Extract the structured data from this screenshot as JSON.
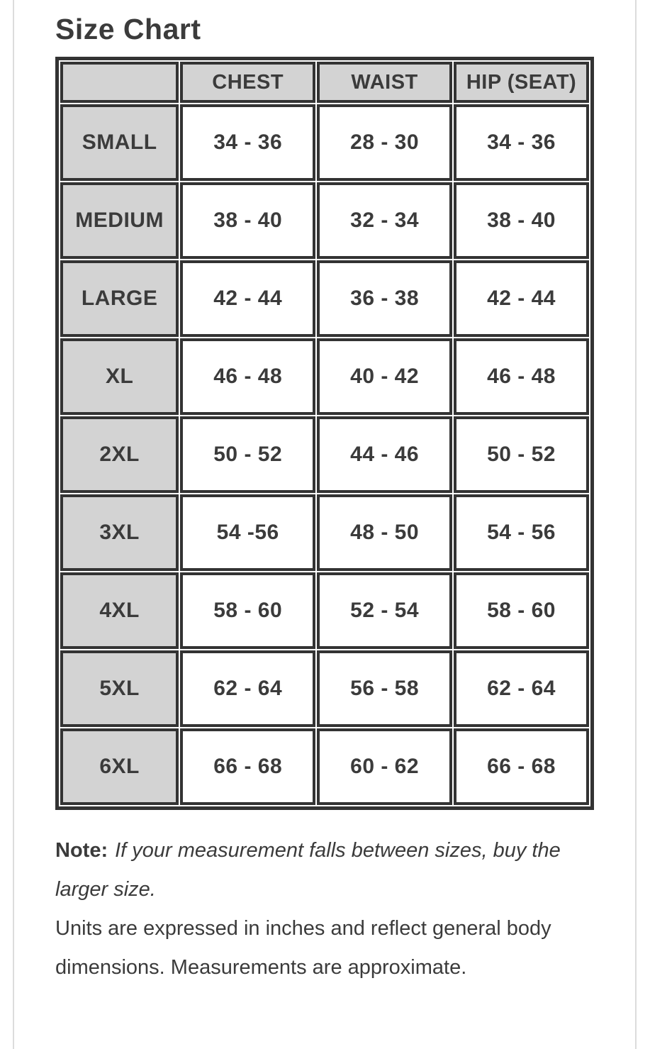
{
  "page": {
    "title": "Size Chart"
  },
  "size_table": {
    "columns": [
      "",
      "CHEST",
      "WAIST",
      "HIP (SEAT)"
    ],
    "rows": [
      {
        "size": "SMALL",
        "chest": "34 - 36",
        "waist": "28 - 30",
        "hip": "34 - 36"
      },
      {
        "size": "MEDIUM",
        "chest": "38 - 40",
        "waist": "32 - 34",
        "hip": "38 - 40"
      },
      {
        "size": "LARGE",
        "chest": "42 - 44",
        "waist": "36 - 38",
        "hip": "42 - 44"
      },
      {
        "size": "XL",
        "chest": "46 - 48",
        "waist": "40 - 42",
        "hip": "46 - 48"
      },
      {
        "size": "2XL",
        "chest": "50 - 52",
        "waist": "44 - 46",
        "hip": "50 - 52"
      },
      {
        "size": "3XL",
        "chest": "54 -56",
        "waist": "48 - 50",
        "hip": "54 - 56"
      },
      {
        "size": "4XL",
        "chest": "58 - 60",
        "waist": "52 - 54",
        "hip": "58 - 60"
      },
      {
        "size": "5XL",
        "chest": "62 - 64",
        "waist": "56 - 58",
        "hip": "62 - 64"
      },
      {
        "size": "6XL",
        "chest": "66 - 68",
        "waist": "60 - 62",
        "hip": "66 - 68"
      }
    ]
  },
  "notes": {
    "label": "Note:",
    "emphasis": "If your measurement falls between sizes, buy the larger size.",
    "body": "Units are expressed in inches and reflect general body dimensions. Measurements are approximate."
  },
  "colors": {
    "table_border": "#333333",
    "header_fill": "#d3d3d3",
    "text": "#3b3b3b",
    "page_edge_line": "#dcdcdc"
  }
}
